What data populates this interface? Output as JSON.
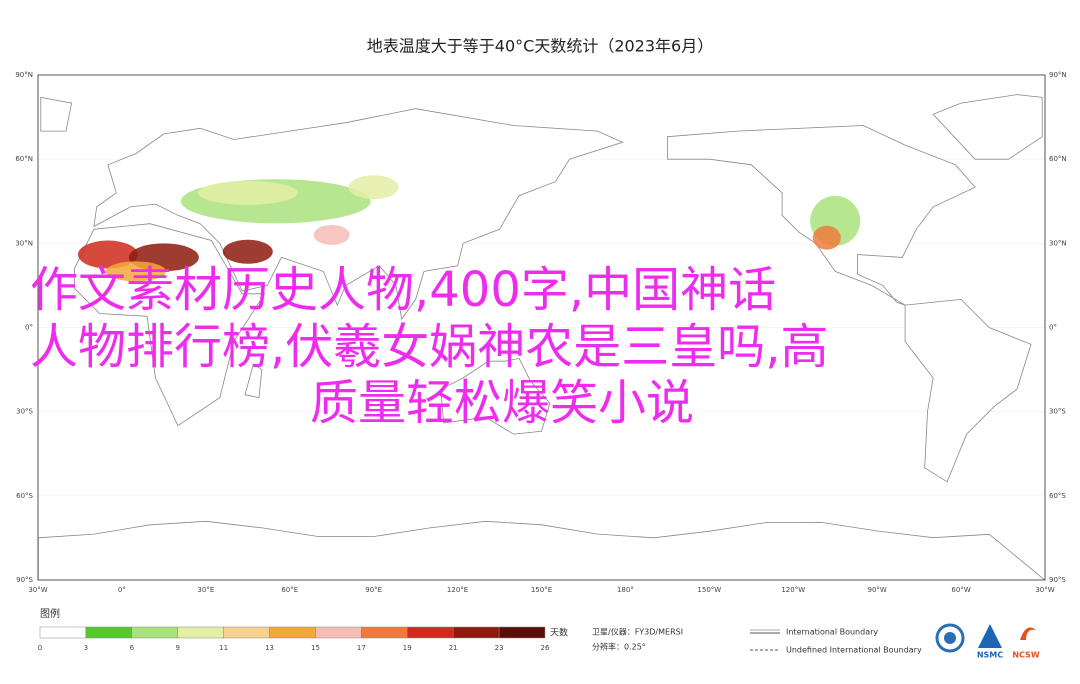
{
  "title": "地表温度大于等于40°C天数统计（2023年6月）",
  "overlay": {
    "lines": [
      "作文素材历史人物,400字,中国神话",
      "人物排行榜,伏羲女娲神农是三皇吗,高",
      "质量轻松爆笑小说"
    ]
  },
  "map": {
    "lat_labels": [
      "90°N",
      "60°N",
      "30°N",
      "0°",
      "30°S",
      "60°S",
      "90°S"
    ],
    "lon_labels": [
      "30°W",
      "0°",
      "30°E",
      "60°E",
      "90°E",
      "120°E",
      "150°E",
      "180°",
      "150°W",
      "120°W",
      "90°W",
      "60°W",
      "30°W"
    ]
  },
  "legend": {
    "title": "图例",
    "unit": "天数",
    "scale_labels": [
      "0",
      "3",
      "6",
      "9",
      "11",
      "13",
      "15",
      "17",
      "19",
      "21",
      "23",
      "26"
    ],
    "colors": [
      "#ffffff",
      "#55c92a",
      "#a9e27c",
      "#e4efa6",
      "#f6d28e",
      "#f3a93a",
      "#f6bcb6",
      "#ee7a3c",
      "#cf2a1c",
      "#8e1a0e",
      "#5a0e06"
    ]
  },
  "info": {
    "satellite": "卫星/仪器：FY3D/MERSI",
    "resolution": "分辨率：0.25°"
  },
  "boundaries": [
    "International Boundary",
    "Undefined International Boundary"
  ],
  "logos": [
    "NSMC",
    "NCSW"
  ]
}
